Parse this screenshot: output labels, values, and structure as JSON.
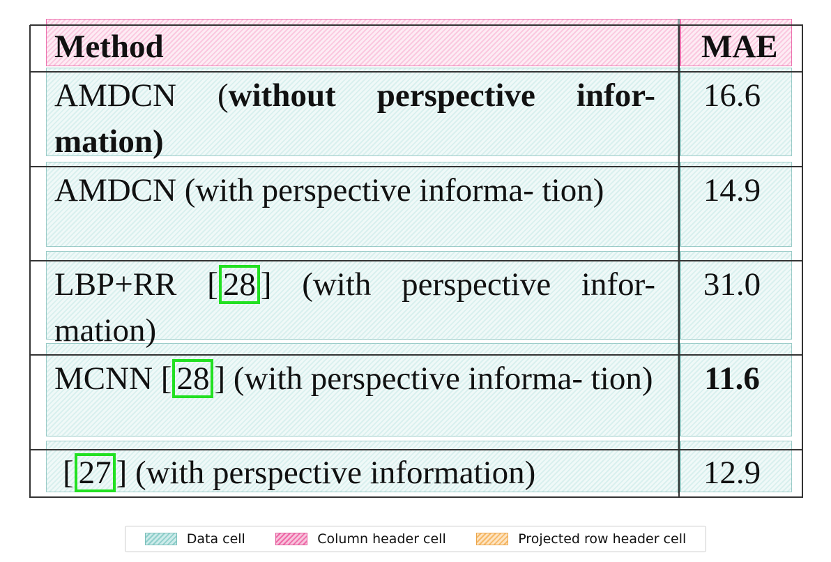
{
  "table": {
    "columns": [
      "Method",
      "MAE"
    ],
    "rows": [
      {
        "method_plain": "AMDCN (",
        "method_bold": "without perspective infor- mation",
        "method_end": ")",
        "mae": "16.6"
      },
      {
        "method": "AMDCN (with perspective informa- tion)",
        "mae": "14.9"
      },
      {
        "method_pre": "LBP+RR [",
        "cite": "28",
        "method_post": "] (with perspective infor- mation)",
        "mae": "31.0"
      },
      {
        "method_pre": "MCNN [",
        "cite": "28",
        "method_post": "] (with perspective informa- tion)",
        "mae": "11.6",
        "mae_bold": true
      },
      {
        "method_pre": "[",
        "cite": "27",
        "method_post": "] (with perspective information)",
        "mae": "12.9"
      }
    ]
  },
  "legend": {
    "items": [
      "Data cell",
      "Column header cell",
      "Projected row header cell"
    ]
  },
  "colors": {
    "data_cell": "#8fcfcb",
    "column_header_cell": "#ef6aa8",
    "projected_row_header_cell": "#f6b866",
    "citation_box": "#22e022"
  }
}
